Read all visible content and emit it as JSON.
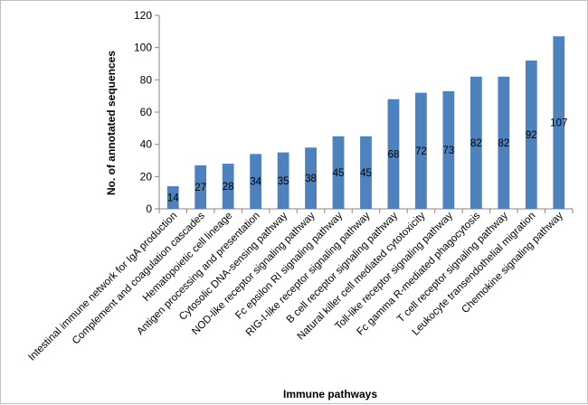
{
  "chart_data": {
    "type": "bar",
    "title": "",
    "xlabel": "Immune pathways",
    "ylabel": "No. of annotated sequences",
    "ylim": [
      0,
      120
    ],
    "yticks": [
      0,
      20,
      40,
      60,
      80,
      100,
      120
    ],
    "grid": false,
    "legend": "none",
    "bar_color": "#4f81bd",
    "categories": [
      "Intestinal immune network for IgA production",
      "Complement and coagulation cascades",
      "Hematopoietic cell lineage",
      "Antigen processing and presentation",
      "Cytosolic DNA-sensing pathway",
      "NOD-like receptor signaling pathway",
      "Fc epsilon RI signaling pathway",
      "RIG-I-like receptor signaling pathway",
      "B cell receptor signaling pathway",
      "Natural killer cell mediated cytotoxicity",
      "Toll-like receptor signaling pathway",
      "Fc gamma R-mediated phagocytosis",
      "T cell receptor signaling pathway",
      "Leukocyte transendothelial migration",
      "Chemokine signaling pathway"
    ],
    "values": [
      14,
      27,
      28,
      34,
      35,
      38,
      45,
      45,
      68,
      72,
      73,
      82,
      82,
      92,
      107
    ]
  }
}
